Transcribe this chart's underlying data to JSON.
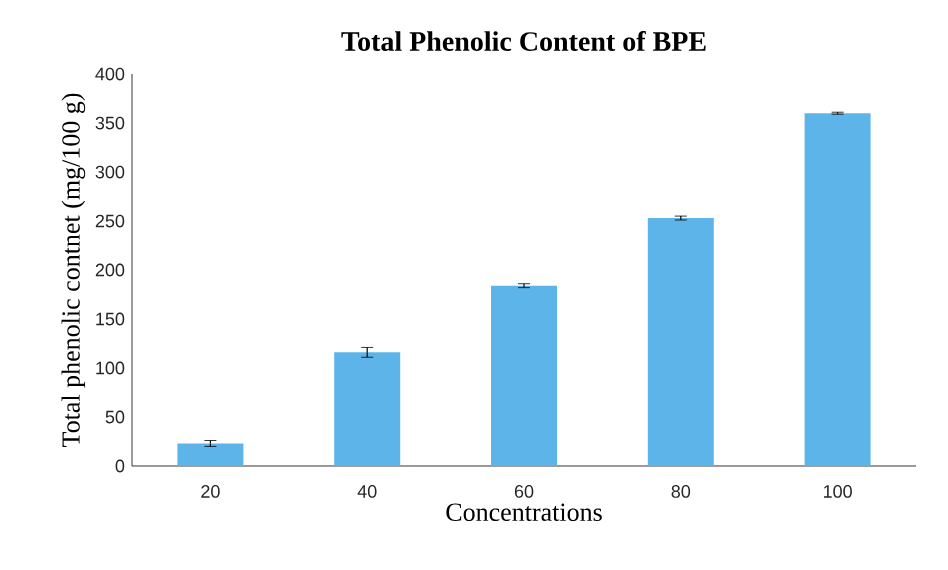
{
  "chart_data": {
    "type": "bar",
    "title": "Total Phenolic Content of BPE",
    "xlabel": "Concentrations",
    "ylabel": "Total phenolic contnet (mg/100 g)",
    "categories": [
      "20",
      "40",
      "60",
      "80",
      "100"
    ],
    "values": [
      23,
      116,
      184,
      253,
      360
    ],
    "errors": [
      3,
      5,
      2,
      2,
      1
    ],
    "color": "#5db4e8",
    "ylim": [
      0,
      400
    ],
    "yticks": [
      0,
      50,
      100,
      150,
      200,
      250,
      300,
      350,
      400
    ],
    "grid": false
  }
}
